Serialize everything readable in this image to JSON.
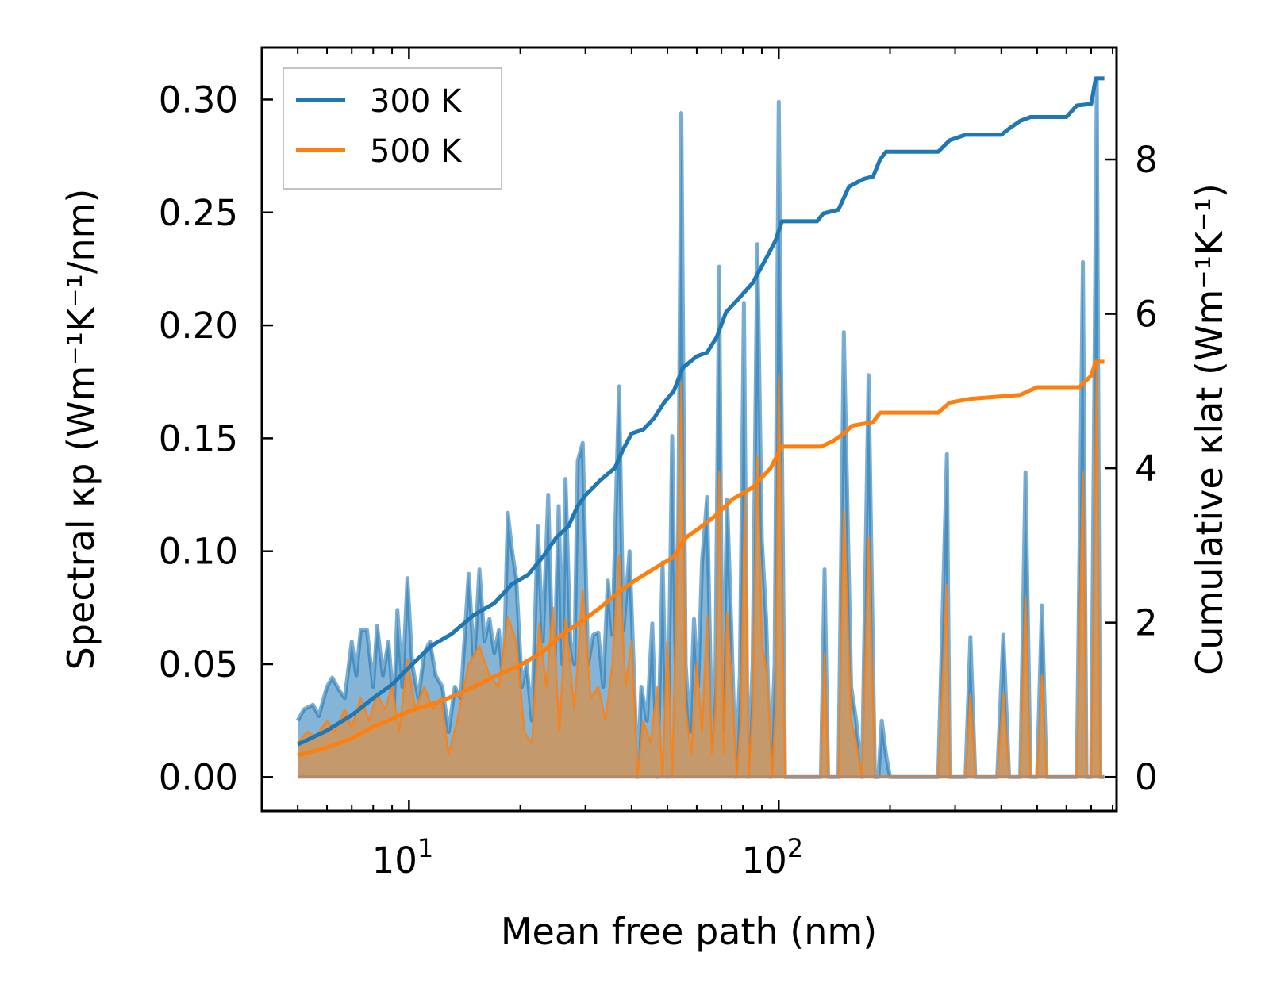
{
  "chart_data": {
    "type": "line",
    "xlabel": "Mean free path (nm)",
    "ylabel_left": "Spectral κp (Wm⁻¹K⁻¹/nm)",
    "ylabel_right": "Cumulative κlat (Wm⁻¹K⁻¹)",
    "x_scale": "log",
    "xlim": [
      4.0,
      820
    ],
    "ylim_left": [
      -0.015,
      0.323
    ],
    "ylim_right": [
      -0.44,
      9.45
    ],
    "x_major_ticks": [
      10,
      100
    ],
    "x_major_tick_labels": [
      {
        "base": "10",
        "exp": "1"
      },
      {
        "base": "10",
        "exp": "2"
      }
    ],
    "y_left_ticks": [
      0.0,
      0.05,
      0.1,
      0.15,
      0.2,
      0.25,
      0.3
    ],
    "y_left_tick_labels": [
      "0.00",
      "0.05",
      "0.10",
      "0.15",
      "0.20",
      "0.25",
      "0.30"
    ],
    "y_right_ticks": [
      0,
      2,
      4,
      6,
      8
    ],
    "y_right_tick_labels": [
      "0",
      "2",
      "4",
      "6",
      "8"
    ],
    "legend": {
      "placement": "top-left",
      "entries": [
        {
          "label": "300 K",
          "color": "#1f77b4"
        },
        {
          "label": "500 K",
          "color": "#ff7f0e"
        }
      ]
    },
    "colors": {
      "series_300": "#1f77b4",
      "series_500": "#ff7f0e",
      "fill_500": "#c49a6c"
    },
    "spectral_300": [
      [
        5.0,
        0.025
      ],
      [
        5.2,
        0.03
      ],
      [
        5.5,
        0.032
      ],
      [
        5.7,
        0.027
      ],
      [
        6.0,
        0.04
      ],
      [
        6.2,
        0.044
      ],
      [
        6.5,
        0.038
      ],
      [
        6.7,
        0.035
      ],
      [
        7.0,
        0.06
      ],
      [
        7.2,
        0.045
      ],
      [
        7.4,
        0.065
      ],
      [
        7.7,
        0.065
      ],
      [
        8.0,
        0.04
      ],
      [
        8.2,
        0.067
      ],
      [
        8.5,
        0.045
      ],
      [
        8.8,
        0.06
      ],
      [
        9.1,
        0.03
      ],
      [
        9.3,
        0.074
      ],
      [
        9.6,
        0.04
      ],
      [
        9.9,
        0.088
      ],
      [
        10.2,
        0.05
      ],
      [
        10.6,
        0.035
      ],
      [
        11.0,
        0.055
      ],
      [
        11.4,
        0.06
      ],
      [
        11.8,
        0.045
      ],
      [
        12.3,
        0.04
      ],
      [
        12.8,
        0.02
      ],
      [
        13.3,
        0.04
      ],
      [
        13.8,
        0.035
      ],
      [
        14.5,
        0.09
      ],
      [
        15.0,
        0.05
      ],
      [
        15.5,
        0.092
      ],
      [
        16.0,
        0.06
      ],
      [
        16.5,
        0.07
      ],
      [
        17.0,
        0.055
      ],
      [
        17.5,
        0.065
      ],
      [
        18.0,
        0.04
      ],
      [
        18.5,
        0.117
      ],
      [
        19.0,
        0.1
      ],
      [
        19.5,
        0.088
      ],
      [
        20.2,
        0.04
      ],
      [
        20.8,
        0.05
      ],
      [
        21.5,
        0.025
      ],
      [
        22.3,
        0.111
      ],
      [
        23.0,
        0.06
      ],
      [
        23.8,
        0.125
      ],
      [
        24.6,
        0.035
      ],
      [
        25.4,
        0.12
      ],
      [
        26.0,
        0.05
      ],
      [
        26.5,
        0.132
      ],
      [
        27.3,
        0.06
      ],
      [
        28.0,
        0.05
      ],
      [
        28.6,
        0.14
      ],
      [
        29.5,
        0.148
      ],
      [
        30.5,
        0.05
      ],
      [
        31.5,
        0.063
      ],
      [
        32.5,
        0.064
      ],
      [
        33.5,
        0.04
      ],
      [
        34.5,
        0.087
      ],
      [
        35.5,
        0.063
      ],
      [
        37.0,
        0.173
      ],
      [
        38.0,
        0.065
      ],
      [
        39.5,
        0.1
      ],
      [
        40.5,
        0.05
      ],
      [
        41.5,
        0.0
      ],
      [
        42.5,
        0.04
      ],
      [
        44.0,
        0.025
      ],
      [
        45.5,
        0.068
      ],
      [
        47.0,
        0.0
      ],
      [
        48.5,
        0.095
      ],
      [
        50.0,
        0.0
      ],
      [
        51.5,
        0.151
      ],
      [
        53.0,
        0.02
      ],
      [
        54.5,
        0.294
      ],
      [
        56.0,
        0.05
      ],
      [
        57.5,
        0.02
      ],
      [
        59.0,
        0.07
      ],
      [
        60.5,
        0.04
      ],
      [
        62.0,
        0.095
      ],
      [
        64.0,
        0.124
      ],
      [
        66.0,
        0.015
      ],
      [
        67.5,
        0.05
      ],
      [
        69.0,
        0.226
      ],
      [
        70.5,
        0.02
      ],
      [
        72.5,
        0.123
      ],
      [
        74.5,
        0.065
      ],
      [
        76.5,
        0.0
      ],
      [
        78.5,
        0.045
      ],
      [
        80.5,
        0.21
      ],
      [
        82.5,
        0.0
      ],
      [
        85.0,
        0.05
      ],
      [
        87.5,
        0.236
      ],
      [
        90.0,
        0.105
      ],
      [
        92.5,
        0.07
      ],
      [
        95.0,
        0.0
      ],
      [
        97.5,
        0.05
      ],
      [
        100.0,
        0.299
      ],
      [
        104.0,
        0.0
      ],
      [
        130.0,
        0.0
      ],
      [
        133.0,
        0.092
      ],
      [
        136.0,
        0.0
      ],
      [
        145.0,
        0.0
      ],
      [
        150.0,
        0.197
      ],
      [
        157.0,
        0.04
      ],
      [
        162.0,
        0.025
      ],
      [
        168.0,
        0.0
      ],
      [
        175.0,
        0.178
      ],
      [
        182.0,
        0.0
      ],
      [
        186.0,
        0.0
      ],
      [
        190.0,
        0.025
      ],
      [
        195.0,
        0.01
      ],
      [
        200.0,
        0.0
      ],
      [
        270.0,
        0.0
      ],
      [
        285.0,
        0.143
      ],
      [
        290.0,
        0.0
      ],
      [
        320.0,
        0.0
      ],
      [
        330.0,
        0.062
      ],
      [
        340.0,
        0.0
      ],
      [
        390.0,
        0.0
      ],
      [
        405.0,
        0.063
      ],
      [
        420.0,
        0.0
      ],
      [
        450.0,
        0.0
      ],
      [
        465.0,
        0.135
      ],
      [
        480.0,
        0.0
      ],
      [
        500.0,
        0.0
      ],
      [
        515.0,
        0.076
      ],
      [
        530.0,
        0.0
      ],
      [
        600.0,
        0.0
      ],
      [
        640.0,
        0.0
      ],
      [
        665.0,
        0.228
      ],
      [
        680.0,
        0.0
      ],
      [
        700.0,
        0.0
      ],
      [
        725.0,
        0.308
      ],
      [
        740.0,
        0.0
      ],
      [
        760.0,
        0.0
      ]
    ],
    "spectral_500": [
      [
        5.0,
        0.015
      ],
      [
        5.3,
        0.02
      ],
      [
        5.6,
        0.018
      ],
      [
        6.0,
        0.025
      ],
      [
        6.3,
        0.02
      ],
      [
        6.7,
        0.03
      ],
      [
        7.0,
        0.022
      ],
      [
        7.4,
        0.035
      ],
      [
        7.8,
        0.025
      ],
      [
        8.2,
        0.037
      ],
      [
        8.6,
        0.03
      ],
      [
        9.0,
        0.04
      ],
      [
        9.4,
        0.02
      ],
      [
        9.9,
        0.052
      ],
      [
        10.4,
        0.03
      ],
      [
        11.0,
        0.04
      ],
      [
        11.6,
        0.03
      ],
      [
        12.2,
        0.035
      ],
      [
        12.8,
        0.01
      ],
      [
        13.5,
        0.025
      ],
      [
        14.5,
        0.05
      ],
      [
        15.5,
        0.058
      ],
      [
        16.5,
        0.045
      ],
      [
        17.5,
        0.04
      ],
      [
        18.5,
        0.071
      ],
      [
        19.5,
        0.06
      ],
      [
        20.5,
        0.02
      ],
      [
        21.5,
        0.015
      ],
      [
        22.5,
        0.068
      ],
      [
        23.5,
        0.04
      ],
      [
        24.5,
        0.075
      ],
      [
        25.5,
        0.02
      ],
      [
        26.5,
        0.07
      ],
      [
        28.0,
        0.03
      ],
      [
        29.5,
        0.083
      ],
      [
        31.0,
        0.035
      ],
      [
        32.5,
        0.04
      ],
      [
        34.0,
        0.025
      ],
      [
        35.5,
        0.05
      ],
      [
        37.0,
        0.098
      ],
      [
        38.5,
        0.04
      ],
      [
        40.0,
        0.06
      ],
      [
        41.5,
        0.0
      ],
      [
        43.0,
        0.025
      ],
      [
        45.0,
        0.015
      ],
      [
        47.0,
        0.04
      ],
      [
        48.5,
        0.0
      ],
      [
        50.0,
        0.06
      ],
      [
        51.5,
        0.0
      ],
      [
        53.0,
        0.085
      ],
      [
        54.5,
        0.175
      ],
      [
        56.0,
        0.03
      ],
      [
        58.0,
        0.01
      ],
      [
        60.0,
        0.05
      ],
      [
        62.0,
        0.02
      ],
      [
        64.0,
        0.071
      ],
      [
        66.0,
        0.01
      ],
      [
        67.5,
        0.03
      ],
      [
        69.0,
        0.135
      ],
      [
        71.0,
        0.01
      ],
      [
        72.5,
        0.073
      ],
      [
        75.0,
        0.035
      ],
      [
        77.0,
        0.0
      ],
      [
        79.0,
        0.025
      ],
      [
        81.0,
        0.125
      ],
      [
        83.0,
        0.0
      ],
      [
        85.0,
        0.03
      ],
      [
        87.5,
        0.142
      ],
      [
        90.0,
        0.06
      ],
      [
        93.0,
        0.045
      ],
      [
        96.0,
        0.0
      ],
      [
        98.0,
        0.03
      ],
      [
        100.0,
        0.178
      ],
      [
        104.0,
        0.0
      ],
      [
        130.0,
        0.0
      ],
      [
        133.0,
        0.055
      ],
      [
        136.0,
        0.0
      ],
      [
        145.0,
        0.0
      ],
      [
        150.0,
        0.118
      ],
      [
        157.0,
        0.025
      ],
      [
        162.0,
        0.015
      ],
      [
        168.0,
        0.0
      ],
      [
        175.0,
        0.106
      ],
      [
        182.0,
        0.0
      ],
      [
        200.0,
        0.0
      ],
      [
        270.0,
        0.0
      ],
      [
        285.0,
        0.085
      ],
      [
        290.0,
        0.0
      ],
      [
        320.0,
        0.0
      ],
      [
        330.0,
        0.037
      ],
      [
        340.0,
        0.0
      ],
      [
        390.0,
        0.0
      ],
      [
        405.0,
        0.037
      ],
      [
        420.0,
        0.0
      ],
      [
        450.0,
        0.0
      ],
      [
        465.0,
        0.08
      ],
      [
        480.0,
        0.0
      ],
      [
        500.0,
        0.0
      ],
      [
        515.0,
        0.045
      ],
      [
        530.0,
        0.0
      ],
      [
        640.0,
        0.0
      ],
      [
        665.0,
        0.135
      ],
      [
        680.0,
        0.0
      ],
      [
        700.0,
        0.0
      ],
      [
        725.0,
        0.183
      ],
      [
        740.0,
        0.0
      ],
      [
        760.0,
        0.0
      ]
    ],
    "cumulative_300": [
      [
        5.0,
        0.42
      ],
      [
        6.0,
        0.6
      ],
      [
        7.0,
        0.8
      ],
      [
        8.0,
        1.02
      ],
      [
        9.0,
        1.2
      ],
      [
        10.0,
        1.42
      ],
      [
        11.5,
        1.7
      ],
      [
        13.0,
        1.85
      ],
      [
        15.0,
        2.1
      ],
      [
        17.0,
        2.25
      ],
      [
        19.0,
        2.5
      ],
      [
        21.0,
        2.62
      ],
      [
        23.0,
        2.85
      ],
      [
        25.0,
        3.1
      ],
      [
        27.0,
        3.25
      ],
      [
        28.5,
        3.5
      ],
      [
        30.0,
        3.65
      ],
      [
        33.0,
        3.85
      ],
      [
        36.0,
        4.0
      ],
      [
        38.0,
        4.25
      ],
      [
        40.0,
        4.45
      ],
      [
        43.0,
        4.5
      ],
      [
        46.0,
        4.65
      ],
      [
        49.0,
        4.85
      ],
      [
        52.0,
        5.0
      ],
      [
        55.0,
        5.3
      ],
      [
        60.0,
        5.45
      ],
      [
        64.0,
        5.5
      ],
      [
        68.0,
        5.7
      ],
      [
        72.0,
        6.02
      ],
      [
        78.0,
        6.2
      ],
      [
        85.0,
        6.4
      ],
      [
        92.0,
        6.7
      ],
      [
        98.0,
        6.95
      ],
      [
        102.0,
        7.2
      ],
      [
        127.0,
        7.2
      ],
      [
        132.0,
        7.3
      ],
      [
        145.0,
        7.35
      ],
      [
        155.0,
        7.65
      ],
      [
        170.0,
        7.75
      ],
      [
        180.0,
        7.78
      ],
      [
        188.0,
        8.0
      ],
      [
        195.0,
        8.1
      ],
      [
        270.0,
        8.1
      ],
      [
        290.0,
        8.25
      ],
      [
        320.0,
        8.32
      ],
      [
        400.0,
        8.32
      ],
      [
        420.0,
        8.4
      ],
      [
        450.0,
        8.5
      ],
      [
        480.0,
        8.55
      ],
      [
        600.0,
        8.55
      ],
      [
        640.0,
        8.7
      ],
      [
        700.0,
        8.72
      ],
      [
        720.0,
        9.05
      ],
      [
        760.0,
        9.05
      ]
    ],
    "cumulative_500": [
      [
        5.0,
        0.28
      ],
      [
        6.0,
        0.38
      ],
      [
        7.0,
        0.5
      ],
      [
        8.0,
        0.65
      ],
      [
        9.0,
        0.75
      ],
      [
        10.0,
        0.85
      ],
      [
        12.0,
        0.97
      ],
      [
        14.0,
        1.1
      ],
      [
        17.0,
        1.3
      ],
      [
        20.0,
        1.45
      ],
      [
        23.0,
        1.62
      ],
      [
        26.0,
        1.85
      ],
      [
        29.0,
        2.0
      ],
      [
        33.0,
        2.2
      ],
      [
        37.0,
        2.4
      ],
      [
        41.0,
        2.55
      ],
      [
        46.0,
        2.7
      ],
      [
        52.0,
        2.85
      ],
      [
        56.0,
        3.1
      ],
      [
        62.0,
        3.25
      ],
      [
        68.0,
        3.4
      ],
      [
        75.0,
        3.6
      ],
      [
        85.0,
        3.75
      ],
      [
        95.0,
        4.0
      ],
      [
        102.0,
        4.28
      ],
      [
        130.0,
        4.28
      ],
      [
        140.0,
        4.35
      ],
      [
        150.0,
        4.45
      ],
      [
        158.0,
        4.55
      ],
      [
        180.0,
        4.6
      ],
      [
        188.0,
        4.72
      ],
      [
        270.0,
        4.72
      ],
      [
        290.0,
        4.85
      ],
      [
        330.0,
        4.9
      ],
      [
        450.0,
        4.95
      ],
      [
        500.0,
        5.05
      ],
      [
        650.0,
        5.05
      ],
      [
        700.0,
        5.2
      ],
      [
        720.0,
        5.38
      ],
      [
        760.0,
        5.38
      ]
    ]
  }
}
